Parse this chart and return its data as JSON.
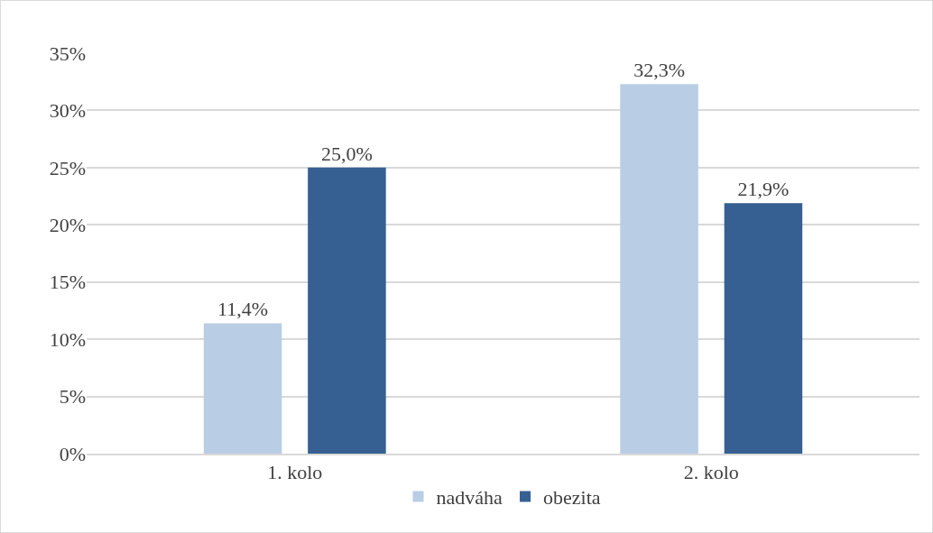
{
  "chart_data": {
    "type": "bar",
    "categories": [
      "1. kolo",
      "2. kolo"
    ],
    "series": [
      {
        "name": "nadváha",
        "color": "#b9cde5",
        "values": [
          11.4,
          32.3
        ],
        "value_labels": [
          "11,4%",
          "32,3%"
        ]
      },
      {
        "name": "obezita",
        "color": "#366092",
        "values": [
          25.0,
          21.9
        ],
        "value_labels": [
          "25,0%",
          "21,9%"
        ]
      }
    ],
    "ylim": [
      0,
      35
    ],
    "yticks": [
      {
        "value": 0,
        "label": "0%"
      },
      {
        "value": 5,
        "label": "5%"
      },
      {
        "value": 10,
        "label": "10%"
      },
      {
        "value": 15,
        "label": "15%"
      },
      {
        "value": 20,
        "label": "20%"
      },
      {
        "value": 25,
        "label": "25%"
      },
      {
        "value": 30,
        "label": "30%"
      },
      {
        "value": 35,
        "label": "35%"
      }
    ],
    "grid": "y",
    "legend": "bottom"
  }
}
